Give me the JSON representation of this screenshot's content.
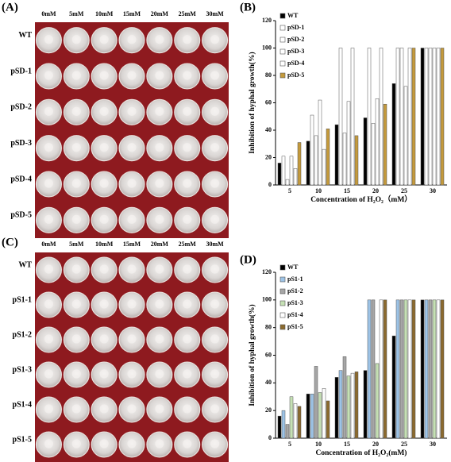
{
  "photo_panels": [
    {
      "label": "(A)",
      "columns": [
        "0mM",
        "5mM",
        "10mM",
        "15mM",
        "20mM",
        "25mM",
        "30mM"
      ],
      "rows": [
        "WT",
        "pSD-1",
        "pSD-2",
        "pSD-3",
        "pSD-4",
        "pSD-5"
      ]
    },
    {
      "label": "(C)",
      "columns": [
        "0mM",
        "5mM",
        "10mM",
        "15mM",
        "20mM",
        "25mM",
        "30mM"
      ],
      "rows": [
        "WT",
        "pS1-1",
        "pS1-2",
        "pS1-3",
        "pS1-4",
        "pS1-5"
      ]
    }
  ],
  "chart_data": [
    {
      "type": "bar",
      "label": "(B)",
      "y_label": "Inhibition of hyphal growth(%)",
      "x_label": "Concentration  of H₂O₂（mM）",
      "categories": [
        "5",
        "10",
        "15",
        "20",
        "25",
        "30"
      ],
      "series": [
        {
          "name": "WT",
          "color": "#000000",
          "values": [
            16,
            32,
            44,
            49,
            74,
            100
          ]
        },
        {
          "name": "pSD-1",
          "color": "#ffffff",
          "values": [
            21,
            51,
            100,
            100,
            100,
            100
          ]
        },
        {
          "name": "pSD-2",
          "color": "#ffffff",
          "values": [
            4,
            36,
            38,
            45,
            100,
            100
          ]
        },
        {
          "name": "pSD-3",
          "color": "#ffffff",
          "values": [
            21,
            62,
            61,
            63,
            72,
            100
          ]
        },
        {
          "name": "pSD-4",
          "color": "#ffffff",
          "values": [
            12,
            26,
            100,
            100,
            100,
            100
          ]
        },
        {
          "name": "pSD-5",
          "color": "#c49a3c",
          "values": [
            31,
            41,
            36,
            59,
            100,
            100
          ]
        }
      ],
      "ylim": [
        0,
        120
      ],
      "yticks": [
        0,
        20,
        40,
        60,
        80,
        100,
        120
      ],
      "grid": false,
      "legend": "top-left"
    },
    {
      "type": "bar",
      "label": "(D)",
      "y_label": "Inhibition of hyphal growth(%)",
      "x_label": "Concentration  of H₂O₂(mM)",
      "categories": [
        "5",
        "10",
        "15",
        "20",
        "25",
        "30"
      ],
      "series": [
        {
          "name": "WT",
          "color": "#000000",
          "values": [
            16,
            32,
            44,
            49,
            74,
            100
          ]
        },
        {
          "name": "pS1-1",
          "color": "#9dc3e6",
          "values": [
            20,
            32,
            49,
            100,
            100,
            100
          ]
        },
        {
          "name": "pS1-2",
          "color": "#a6a6a6",
          "values": [
            10,
            52,
            59,
            100,
            100,
            100
          ]
        },
        {
          "name": "pS1-3",
          "color": "#c5e0b4",
          "values": [
            30,
            33,
            45,
            54,
            100,
            100
          ]
        },
        {
          "name": "pS1-4",
          "color": "#ffffff",
          "values": [
            25,
            36,
            47,
            100,
            100,
            100
          ]
        },
        {
          "name": "pS1-5",
          "color": "#8b6a2e",
          "values": [
            23,
            27,
            48,
            100,
            100,
            100
          ]
        }
      ],
      "ylim": [
        0,
        120
      ],
      "yticks": [
        0,
        20,
        40,
        60,
        80,
        100,
        120
      ],
      "grid": false,
      "legend": "top-left"
    }
  ]
}
